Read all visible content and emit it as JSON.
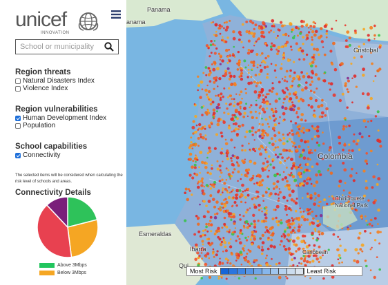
{
  "brand": {
    "name": "unicef",
    "sub": "INNOVATION"
  },
  "search": {
    "placeholder": "School or municipality",
    "value": ""
  },
  "threats": {
    "title": "Region threats",
    "items": [
      {
        "label": "Natural Disasters Index",
        "checked": false
      },
      {
        "label": "Violence Index",
        "checked": false
      }
    ]
  },
  "vulnerabilities": {
    "title": "Region vulnerabilities",
    "items": [
      {
        "label": "Human Development Index",
        "checked": true
      },
      {
        "label": "Population",
        "checked": false
      }
    ]
  },
  "capabilities": {
    "title": "School capabilities",
    "items": [
      {
        "label": "Connectivity",
        "checked": true
      }
    ]
  },
  "note": "The selected items will be considered when calculating the risk level of schools and areas.",
  "connectivity": {
    "title": "Connectivity Details",
    "legend": [
      {
        "label": "Above 3Mbps",
        "color": "#22c55e"
      },
      {
        "label": "Below 3Mbps",
        "color": "#f5a623"
      }
    ],
    "slices": [
      {
        "name": "green",
        "value": 21,
        "color": "#2ec25a"
      },
      {
        "name": "orange",
        "value": 27,
        "color": "#f5a623"
      },
      {
        "name": "red",
        "value": 40,
        "color": "#e84150"
      },
      {
        "name": "purple",
        "value": 12,
        "color": "#7a1f7a"
      }
    ]
  },
  "map": {
    "labels": {
      "panama_top": "Panama",
      "panama": "anama",
      "cristobal": "Cristobal",
      "colombia": "Colombia",
      "chiribiquete": "Chiribiquete\nNational Park",
      "esmeraldas": "Esmeraldas",
      "ibarra": "Ibarra",
      "quito": "Qui",
      "caribbean": "Caribbean"
    },
    "legend": {
      "most": "Most Risk",
      "least": "Least Risk",
      "shades": [
        "#1565d8",
        "#2a75de",
        "#3f85e3",
        "#5695e6",
        "#6ea6e9",
        "#86b6ec",
        "#9fc5ee",
        "#b6d2ef",
        "#cbdcee",
        "#dbe4ee"
      ]
    }
  }
}
